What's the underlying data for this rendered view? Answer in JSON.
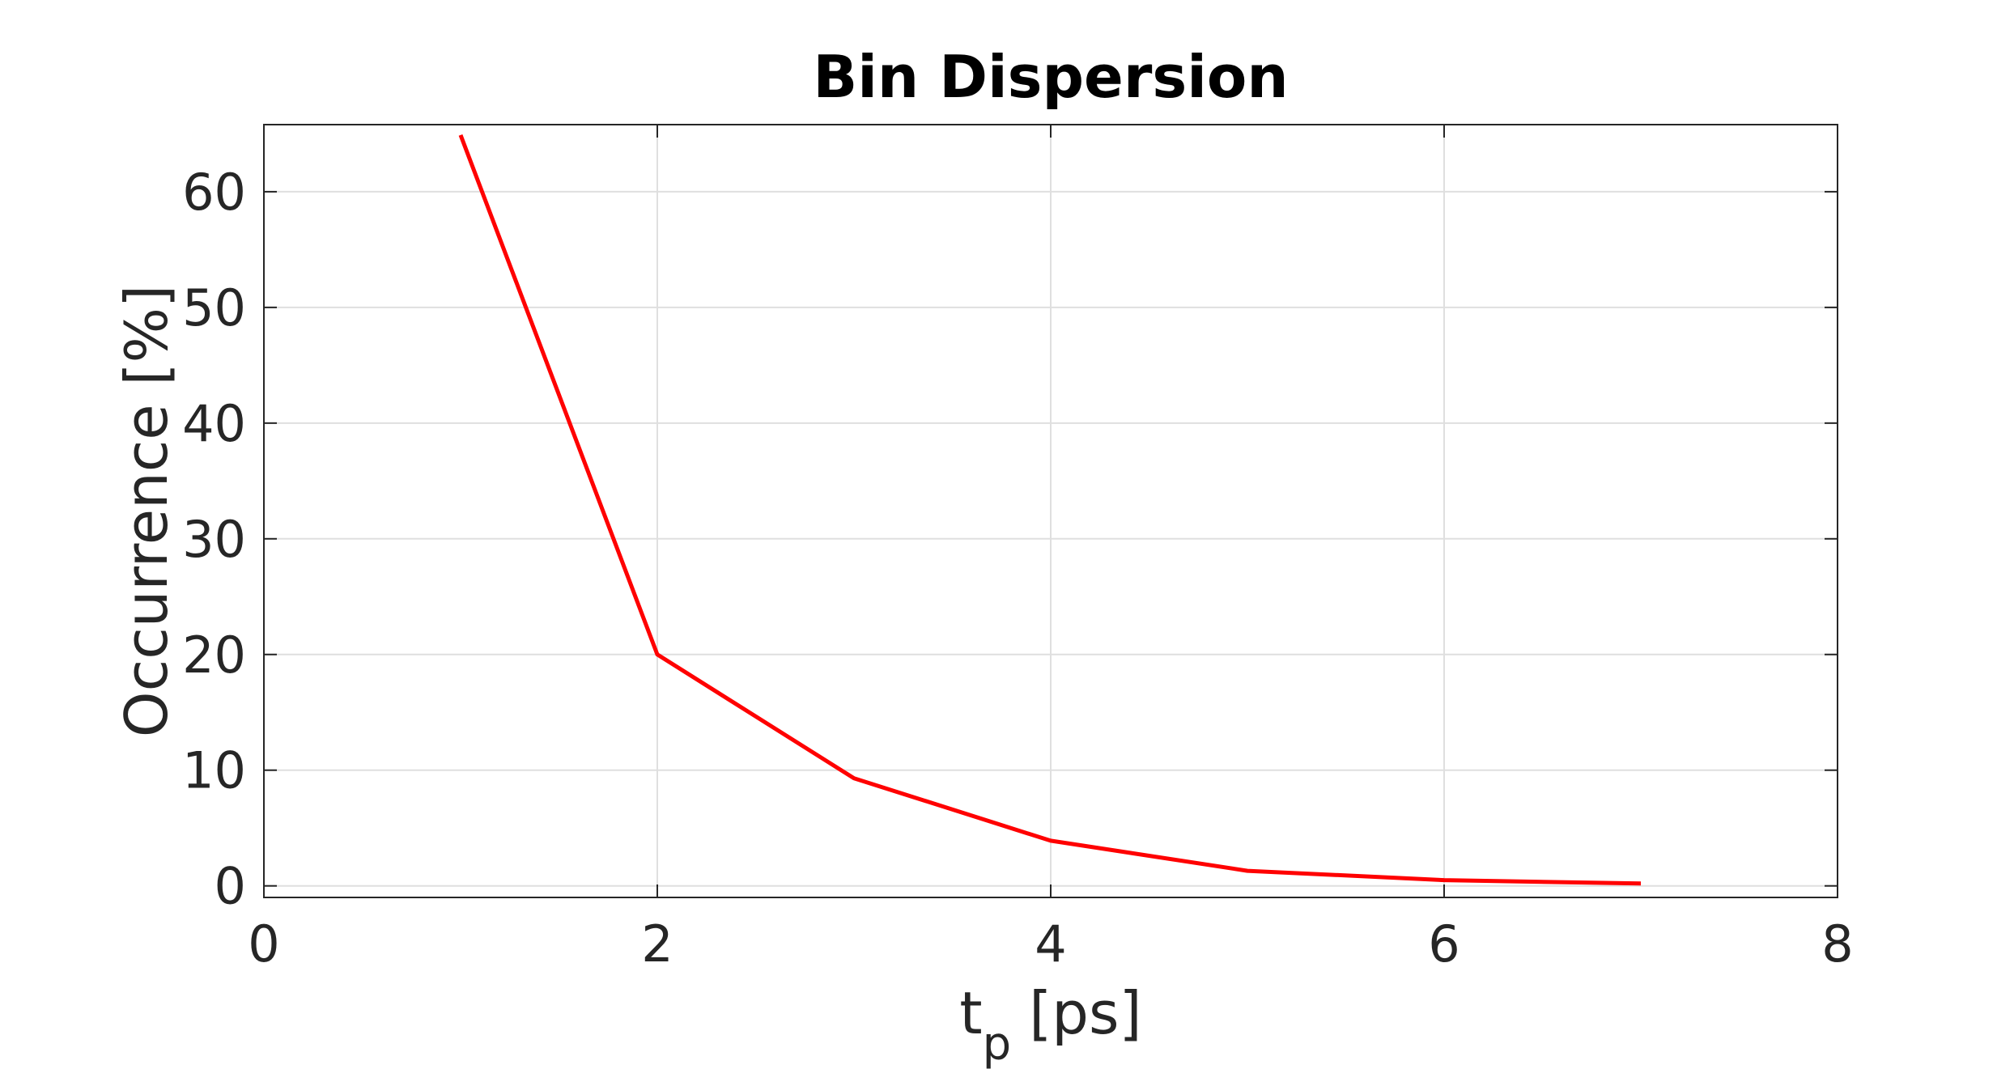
{
  "chart_data": {
    "type": "line",
    "title": "Bin Dispersion",
    "xlabel": "t",
    "xlabel_subscript": "p",
    "xlabel_unit": "[ps]",
    "ylabel": "Occurrence [%]",
    "xlim": [
      0,
      8
    ],
    "ylim": [
      -1,
      65.8
    ],
    "xticks": [
      "0",
      "2",
      "4",
      "6",
      "8"
    ],
    "yticks": [
      "0",
      "10",
      "20",
      "30",
      "40",
      "50",
      "60"
    ],
    "grid": true,
    "series": [
      {
        "x": [
          1,
          2,
          3,
          4,
          5,
          6,
          7
        ],
        "y": [
          64.9,
          20.0,
          9.3,
          3.9,
          1.3,
          0.5,
          0.2
        ],
        "color": "#ff0000"
      }
    ]
  }
}
